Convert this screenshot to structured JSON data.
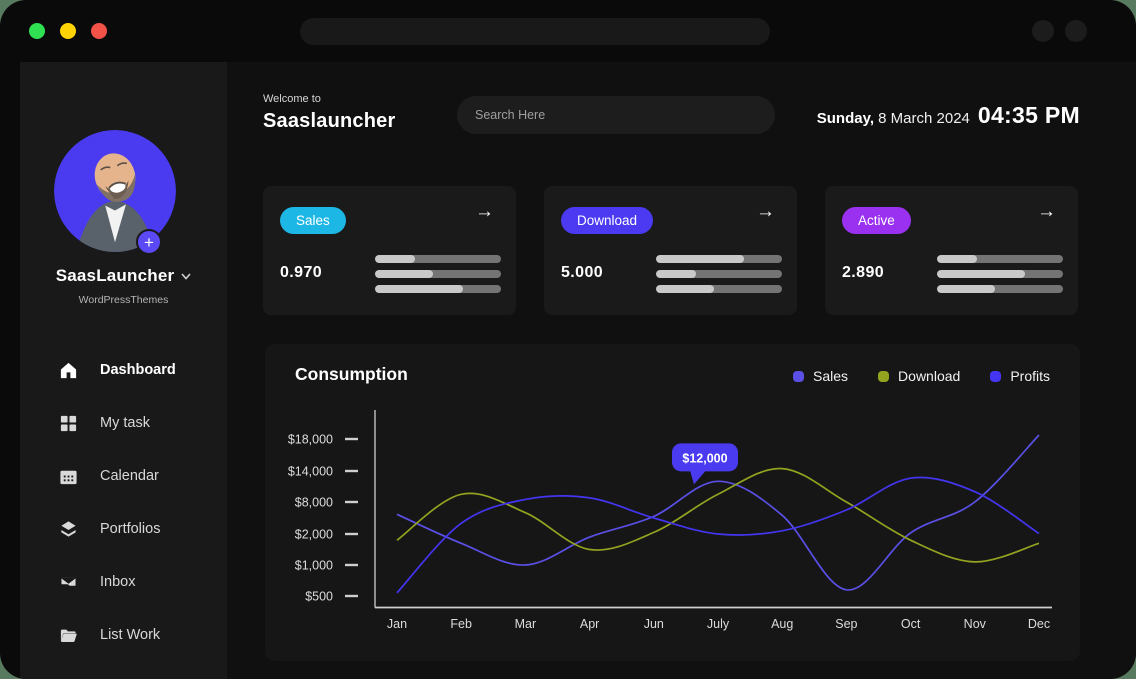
{
  "backdrop_color": "#587a5f",
  "window": {
    "traffic_lights": [
      {
        "name": "green-light",
        "color": "#30e053"
      },
      {
        "name": "yellow-light",
        "color": "#fdd305"
      },
      {
        "name": "red-light",
        "color": "#f25248"
      }
    ],
    "control_dot_count": 2
  },
  "icons": {
    "arrow_right": "→",
    "plus": "+"
  },
  "header": {
    "welcome": "Welcome to",
    "app_name": "Saaslauncher",
    "search_placeholder": "Search Here",
    "date_day": "Sunday,",
    "date_rest": " 8 March 2024",
    "time": "04:35 PM"
  },
  "sidebar": {
    "profile": {
      "name": "SaasLauncher",
      "subtitle": "WordPressThemes"
    },
    "nav": [
      {
        "icon": "home",
        "label": "Dashboard",
        "active": true
      },
      {
        "icon": "grid",
        "label": "My task",
        "active": false
      },
      {
        "icon": "calendar",
        "label": "Calendar",
        "active": false
      },
      {
        "icon": "layers",
        "label": "Portfolios",
        "active": false
      },
      {
        "icon": "inbox",
        "label": "Inbox",
        "active": false
      },
      {
        "icon": "folder",
        "label": "List Work",
        "active": false
      }
    ]
  },
  "stat_cards": [
    {
      "badge": "Sales",
      "badge_color": "#1db7e5",
      "value": "0.970",
      "bars": [
        32,
        46,
        70
      ]
    },
    {
      "badge": "Download",
      "badge_color": "#4b3af2",
      "value": "5.000",
      "bars": [
        70,
        32,
        46
      ]
    },
    {
      "badge": "Active",
      "badge_color": "#9b31f0",
      "value": "2.890",
      "bars": [
        32,
        70,
        46
      ]
    }
  ],
  "chart_data": {
    "type": "line",
    "title": "Consumption",
    "x_labels": [
      "Jan",
      "Feb",
      "Mar",
      "Apr",
      "Jun",
      "July",
      "Aug",
      "Sep",
      "Oct",
      "Nov",
      "Dec"
    ],
    "y_ticks": [
      {
        "label": "$18,000",
        "value": 18000
      },
      {
        "label": "$14,000",
        "value": 14000
      },
      {
        "label": "$8,000",
        "value": 8000
      },
      {
        "label": "$2,000",
        "value": 2000
      },
      {
        "label": "$1,000",
        "value": 1000
      },
      {
        "label": "$500",
        "value": 500
      }
    ],
    "grid": false,
    "legend_position": "top-right",
    "series": [
      {
        "name": "Sales",
        "color": "#5b50e6",
        "values": [
          5700,
          1700,
          1000,
          1900,
          5300,
          12000,
          5500,
          600,
          2200,
          8000,
          18500
        ]
      },
      {
        "name": "Download",
        "color": "#93a320",
        "values": [
          1800,
          9500,
          6000,
          1500,
          2300,
          9500,
          14300,
          8000,
          1800,
          1100,
          1700
        ]
      },
      {
        "name": "Profits",
        "color": "#4435f0",
        "values": [
          550,
          4000,
          8500,
          8800,
          5000,
          2000,
          2600,
          6500,
          12600,
          10000,
          2100
        ]
      }
    ],
    "tooltip": {
      "label": "$12,000",
      "series": "Sales",
      "x_label": "July",
      "value": 12000,
      "color": "#4b3bf0"
    }
  }
}
